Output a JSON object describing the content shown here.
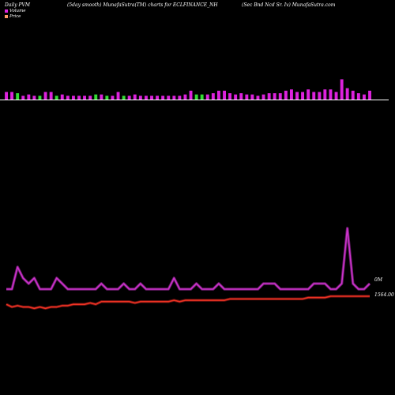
{
  "header": {
    "left": "Daily PVM",
    "center": "(5day smooth) MunafaSutra(TM) charts for ECLFINANCE_NH",
    "right": "(Sec Bnd Ncd Sr. Iv) MunafaSutra.com"
  },
  "legend": [
    {
      "label": "Volume",
      "color": "#dd22dd"
    },
    {
      "label": "Price",
      "color": "#ff9966"
    }
  ],
  "colors": {
    "up": "#dd22dd",
    "down": "#33dd33",
    "price": "#ee3322",
    "volume_line": "#cc33cc",
    "baseline": "#ffffff"
  },
  "chart_data": {
    "type": "bar+line",
    "series": [
      {
        "name": "Volume",
        "type": "bar",
        "values": [
          6,
          6,
          5,
          3,
          4,
          3,
          3,
          6,
          6,
          3,
          4,
          3,
          3,
          3,
          3,
          3,
          4,
          4,
          3,
          3,
          6,
          3,
          3,
          4,
          3,
          3,
          3,
          3,
          3,
          3,
          3,
          3,
          4,
          7,
          4,
          4,
          4,
          5,
          7,
          7,
          5,
          4,
          5,
          4,
          4,
          3,
          4,
          5,
          5,
          5,
          7,
          8,
          6,
          6,
          8,
          6,
          6,
          8,
          8,
          6,
          16,
          9,
          7,
          5,
          4,
          7
        ],
        "direction": [
          "u",
          "u",
          "d",
          "u",
          "u",
          "u",
          "d",
          "u",
          "u",
          "d",
          "u",
          "u",
          "u",
          "u",
          "u",
          "u",
          "d",
          "u",
          "d",
          "u",
          "u",
          "d",
          "u",
          "u",
          "u",
          "u",
          "u",
          "u",
          "u",
          "u",
          "u",
          "u",
          "u",
          "u",
          "d",
          "d",
          "u",
          "u",
          "u",
          "u",
          "u",
          "u",
          "u",
          "u",
          "u",
          "u",
          "u",
          "u",
          "u",
          "u",
          "u",
          "u",
          "u",
          "u",
          "u",
          "u",
          "u",
          "u",
          "u",
          "u",
          "u",
          "u",
          "u",
          "u",
          "u",
          "u"
        ]
      },
      {
        "name": "Volume (5day smooth)",
        "type": "line",
        "values": [
          2,
          2,
          6,
          4,
          3,
          4,
          2,
          2,
          2,
          4,
          3,
          2,
          2,
          2,
          2,
          2,
          2,
          3,
          2,
          2,
          2,
          3,
          2,
          2,
          3,
          2,
          2,
          2,
          2,
          2,
          4,
          2,
          2,
          2,
          3,
          2,
          2,
          2,
          3,
          2,
          2,
          2,
          2,
          2,
          2,
          2,
          3,
          3,
          3,
          2,
          2,
          2,
          2,
          2,
          2,
          3,
          3,
          3,
          2,
          2,
          3,
          13,
          3,
          2,
          2,
          3
        ]
      },
      {
        "name": "Price",
        "type": "line",
        "values": [
          1560,
          1559,
          1559.5,
          1559,
          1559,
          1558.5,
          1559,
          1558.5,
          1559,
          1559,
          1559.5,
          1559.5,
          1560,
          1560,
          1560,
          1560.5,
          1560,
          1561,
          1561,
          1561,
          1561,
          1561,
          1561,
          1560.5,
          1561,
          1561,
          1561,
          1561,
          1561,
          1561,
          1561.5,
          1561,
          1561.5,
          1561.5,
          1561.5,
          1561.5,
          1561.5,
          1561.5,
          1561.5,
          1561.5,
          1562,
          1562,
          1562,
          1562,
          1562,
          1562,
          1562,
          1562,
          1562,
          1562,
          1562,
          1562,
          1562,
          1562,
          1562.5,
          1562.5,
          1562.5,
          1562.5,
          1563,
          1563,
          1563,
          1563,
          1563,
          1563,
          1563,
          1563
        ]
      }
    ],
    "volume_label": "0M",
    "price_label": "1564.00"
  }
}
